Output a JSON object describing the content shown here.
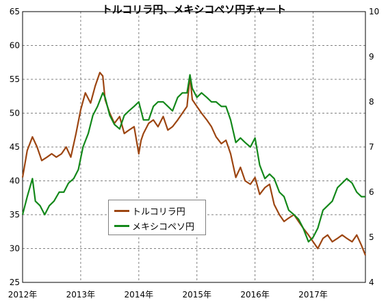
{
  "chart_data": {
    "type": "line",
    "title": "トルコリラ円、メキシコペソ円チャート",
    "x_ticks": [
      "2012年",
      "2013年",
      "2014年",
      "2015年",
      "2016年",
      "2017年"
    ],
    "x_range": [
      2012.0,
      2017.9
    ],
    "y_left": {
      "ylim": [
        25,
        65
      ],
      "ticks": [
        "25",
        "30",
        "35",
        "40",
        "45",
        "50",
        "55",
        "60",
        "65"
      ]
    },
    "y_right": {
      "ylim": [
        4,
        10
      ],
      "ticks": [
        "4",
        "5",
        "6",
        "7",
        "8",
        "9",
        "10"
      ]
    },
    "grid": true,
    "legend_position": "center-left",
    "series": [
      {
        "name": "トルコリラ円",
        "axis": "left",
        "color": "#9c4511",
        "x": [
          2012.0,
          2012.08,
          2012.17,
          2012.25,
          2012.33,
          2012.42,
          2012.5,
          2012.58,
          2012.67,
          2012.75,
          2012.83,
          2012.92,
          2013.0,
          2013.08,
          2013.17,
          2013.25,
          2013.33,
          2013.38,
          2013.42,
          2013.5,
          2013.58,
          2013.67,
          2013.75,
          2013.83,
          2013.92,
          2014.0,
          2014.04,
          2014.08,
          2014.17,
          2014.25,
          2014.33,
          2014.42,
          2014.5,
          2014.58,
          2014.67,
          2014.75,
          2014.83,
          2014.88,
          2014.92,
          2015.0,
          2015.08,
          2015.17,
          2015.25,
          2015.33,
          2015.42,
          2015.5,
          2015.58,
          2015.67,
          2015.75,
          2015.83,
          2015.92,
          2016.0,
          2016.08,
          2016.17,
          2016.25,
          2016.33,
          2016.42,
          2016.5,
          2016.58,
          2016.67,
          2016.75,
          2016.83,
          2016.92,
          2017.0,
          2017.08,
          2017.17,
          2017.25,
          2017.33,
          2017.42,
          2017.5,
          2017.58,
          2017.67,
          2017.75,
          2017.83,
          2017.9
        ],
        "values": [
          40.5,
          44.5,
          46.5,
          45.0,
          43.0,
          43.5,
          44.0,
          43.5,
          44.0,
          45.0,
          43.5,
          47.0,
          50.5,
          53.0,
          51.5,
          54.0,
          56.0,
          55.5,
          52.0,
          50.0,
          48.5,
          49.5,
          47.0,
          47.5,
          48.0,
          44.0,
          46.0,
          47.0,
          48.5,
          49.0,
          48.0,
          49.5,
          47.5,
          48.0,
          49.0,
          50.0,
          51.0,
          55.5,
          52.0,
          51.0,
          50.0,
          49.0,
          48.0,
          46.5,
          45.5,
          46.0,
          44.0,
          40.5,
          42.0,
          40.0,
          39.5,
          40.5,
          38.0,
          39.0,
          39.5,
          36.5,
          35.0,
          34.0,
          34.5,
          35.0,
          34.0,
          33.0,
          32.0,
          31.0,
          30.0,
          31.5,
          32.0,
          31.0,
          31.5,
          32.0,
          31.5,
          31.0,
          32.0,
          30.5,
          29.0
        ]
      },
      {
        "name": "メキシコペソ円",
        "axis": "right",
        "color": "#13881a",
        "x": [
          2012.0,
          2012.08,
          2012.17,
          2012.22,
          2012.3,
          2012.38,
          2012.46,
          2012.54,
          2012.63,
          2012.71,
          2012.79,
          2012.88,
          2012.96,
          2013.04,
          2013.13,
          2013.21,
          2013.29,
          2013.38,
          2013.42,
          2013.5,
          2013.58,
          2013.67,
          2013.75,
          2013.83,
          2013.92,
          2014.0,
          2014.08,
          2014.17,
          2014.25,
          2014.33,
          2014.42,
          2014.5,
          2014.58,
          2014.67,
          2014.75,
          2014.83,
          2014.88,
          2014.92,
          2015.0,
          2015.08,
          2015.17,
          2015.25,
          2015.33,
          2015.42,
          2015.5,
          2015.58,
          2015.67,
          2015.75,
          2015.83,
          2015.92,
          2016.0,
          2016.08,
          2016.17,
          2016.25,
          2016.33,
          2016.42,
          2016.5,
          2016.58,
          2016.67,
          2016.75,
          2016.83,
          2016.92,
          2017.0,
          2017.08,
          2017.17,
          2017.25,
          2017.33,
          2017.42,
          2017.5,
          2017.58,
          2017.67,
          2017.75,
          2017.83,
          2017.9
        ],
        "values": [
          5.5,
          5.9,
          6.3,
          5.8,
          5.7,
          5.5,
          5.7,
          5.8,
          6.0,
          6.0,
          6.2,
          6.3,
          6.5,
          7.0,
          7.3,
          7.7,
          7.9,
          8.2,
          8.1,
          7.7,
          7.5,
          7.4,
          7.7,
          7.8,
          7.9,
          8.0,
          7.6,
          7.6,
          7.9,
          8.0,
          8.0,
          7.9,
          7.8,
          8.1,
          8.2,
          8.2,
          8.6,
          8.3,
          8.1,
          8.2,
          8.1,
          8.0,
          8.0,
          7.9,
          7.9,
          7.6,
          7.1,
          7.2,
          7.1,
          7.0,
          7.2,
          6.6,
          6.3,
          6.4,
          6.3,
          6.0,
          5.9,
          5.6,
          5.5,
          5.4,
          5.2,
          4.9,
          5.0,
          5.2,
          5.6,
          5.7,
          5.8,
          6.1,
          6.2,
          6.3,
          6.2,
          6.0,
          5.9,
          5.9
        ]
      }
    ]
  }
}
